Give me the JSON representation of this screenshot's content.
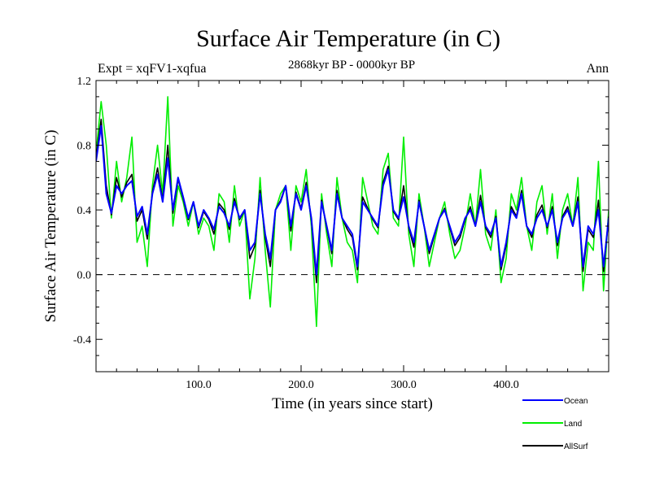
{
  "chart_data": {
    "type": "line",
    "title": "Surface Air Temperature (in C)",
    "subtitle": "2868kyr BP - 0000kyr BP",
    "experiment_label": "Expt = xqFV1-xqfua",
    "season_label": "Ann",
    "xlabel": "Time (in years since start)",
    "ylabel": "Surface Air Temperature (in C)",
    "xlim": [
      0,
      500
    ],
    "ylim": [
      -0.6,
      1.2
    ],
    "xticks": [
      100,
      200,
      300,
      400
    ],
    "xtick_labels": [
      "100.0",
      "200.0",
      "300.0",
      "400.0"
    ],
    "yticks": [
      -0.4,
      0.0,
      0.4,
      0.8,
      1.2
    ],
    "ytick_labels": [
      "-0.4",
      "0.0",
      "0.4",
      "0.8",
      "1.2"
    ],
    "zero_line": "dashed",
    "legend_position": "bottom-right",
    "x": [
      0,
      5,
      10,
      15,
      20,
      25,
      30,
      35,
      40,
      45,
      50,
      55,
      60,
      65,
      70,
      75,
      80,
      85,
      90,
      95,
      100,
      105,
      110,
      115,
      120,
      125,
      130,
      135,
      140,
      145,
      150,
      155,
      160,
      165,
      170,
      175,
      180,
      185,
      190,
      195,
      200,
      205,
      210,
      215,
      220,
      225,
      230,
      235,
      240,
      245,
      250,
      255,
      260,
      265,
      270,
      275,
      280,
      285,
      290,
      295,
      300,
      305,
      310,
      315,
      320,
      325,
      330,
      335,
      340,
      345,
      350,
      355,
      360,
      365,
      370,
      375,
      380,
      385,
      390,
      395,
      400,
      405,
      410,
      415,
      420,
      425,
      430,
      435,
      440,
      445,
      450,
      455,
      460,
      465,
      470,
      475,
      480,
      485,
      490,
      495,
      500
    ],
    "series": [
      {
        "name": "Ocean",
        "color": "#0000ff",
        "values": [
          0.7,
          0.92,
          0.5,
          0.38,
          0.55,
          0.5,
          0.55,
          0.58,
          0.36,
          0.42,
          0.25,
          0.5,
          0.62,
          0.45,
          0.72,
          0.4,
          0.6,
          0.48,
          0.35,
          0.45,
          0.3,
          0.4,
          0.35,
          0.28,
          0.42,
          0.38,
          0.3,
          0.45,
          0.35,
          0.4,
          0.15,
          0.2,
          0.5,
          0.25,
          0.1,
          0.4,
          0.45,
          0.55,
          0.3,
          0.5,
          0.4,
          0.55,
          0.35,
          0.0,
          0.45,
          0.3,
          0.15,
          0.5,
          0.35,
          0.3,
          0.25,
          0.05,
          0.45,
          0.4,
          0.35,
          0.3,
          0.55,
          0.65,
          0.4,
          0.35,
          0.48,
          0.3,
          0.2,
          0.45,
          0.3,
          0.15,
          0.25,
          0.35,
          0.4,
          0.3,
          0.2,
          0.25,
          0.35,
          0.4,
          0.3,
          0.45,
          0.3,
          0.25,
          0.35,
          0.05,
          0.2,
          0.4,
          0.35,
          0.5,
          0.3,
          0.25,
          0.35,
          0.4,
          0.3,
          0.4,
          0.2,
          0.35,
          0.4,
          0.3,
          0.45,
          0.05,
          0.3,
          0.25,
          0.4,
          0.05,
          0.35
        ]
      },
      {
        "name": "Land",
        "color": "#00ee00",
        "values": [
          0.75,
          1.07,
          0.8,
          0.35,
          0.7,
          0.45,
          0.6,
          0.85,
          0.2,
          0.3,
          0.05,
          0.55,
          0.8,
          0.5,
          1.1,
          0.3,
          0.55,
          0.45,
          0.3,
          0.45,
          0.25,
          0.35,
          0.3,
          0.15,
          0.5,
          0.45,
          0.2,
          0.55,
          0.3,
          0.4,
          -0.15,
          0.1,
          0.6,
          0.15,
          -0.2,
          0.4,
          0.5,
          0.55,
          0.15,
          0.55,
          0.45,
          0.65,
          0.3,
          -0.32,
          0.5,
          0.25,
          0.05,
          0.6,
          0.35,
          0.2,
          0.15,
          -0.05,
          0.6,
          0.45,
          0.3,
          0.25,
          0.65,
          0.75,
          0.35,
          0.3,
          0.85,
          0.25,
          0.05,
          0.5,
          0.3,
          0.05,
          0.2,
          0.35,
          0.45,
          0.25,
          0.1,
          0.15,
          0.3,
          0.5,
          0.3,
          0.65,
          0.25,
          0.15,
          0.4,
          -0.05,
          0.1,
          0.5,
          0.4,
          0.6,
          0.3,
          0.15,
          0.45,
          0.55,
          0.25,
          0.5,
          0.1,
          0.4,
          0.5,
          0.3,
          0.6,
          -0.1,
          0.2,
          0.15,
          0.7,
          -0.1,
          0.4
        ]
      },
      {
        "name": "AllSurf",
        "color": "#000000",
        "values": [
          0.72,
          0.96,
          0.55,
          0.37,
          0.6,
          0.48,
          0.57,
          0.62,
          0.33,
          0.4,
          0.22,
          0.51,
          0.66,
          0.46,
          0.8,
          0.38,
          0.59,
          0.47,
          0.34,
          0.45,
          0.29,
          0.39,
          0.34,
          0.25,
          0.44,
          0.4,
          0.28,
          0.47,
          0.34,
          0.4,
          0.1,
          0.18,
          0.52,
          0.23,
          0.05,
          0.4,
          0.46,
          0.55,
          0.27,
          0.51,
          0.41,
          0.57,
          0.34,
          -0.05,
          0.46,
          0.29,
          0.13,
          0.52,
          0.35,
          0.28,
          0.23,
          0.03,
          0.48,
          0.41,
          0.34,
          0.29,
          0.57,
          0.67,
          0.39,
          0.34,
          0.55,
          0.29,
          0.17,
          0.46,
          0.3,
          0.13,
          0.24,
          0.35,
          0.41,
          0.29,
          0.18,
          0.23,
          0.34,
          0.42,
          0.3,
          0.49,
          0.29,
          0.23,
          0.36,
          0.03,
          0.18,
          0.42,
          0.36,
          0.52,
          0.3,
          0.23,
          0.37,
          0.43,
          0.29,
          0.42,
          0.18,
          0.36,
          0.42,
          0.3,
          0.48,
          0.02,
          0.28,
          0.23,
          0.46,
          0.02,
          0.36
        ]
      }
    ]
  }
}
